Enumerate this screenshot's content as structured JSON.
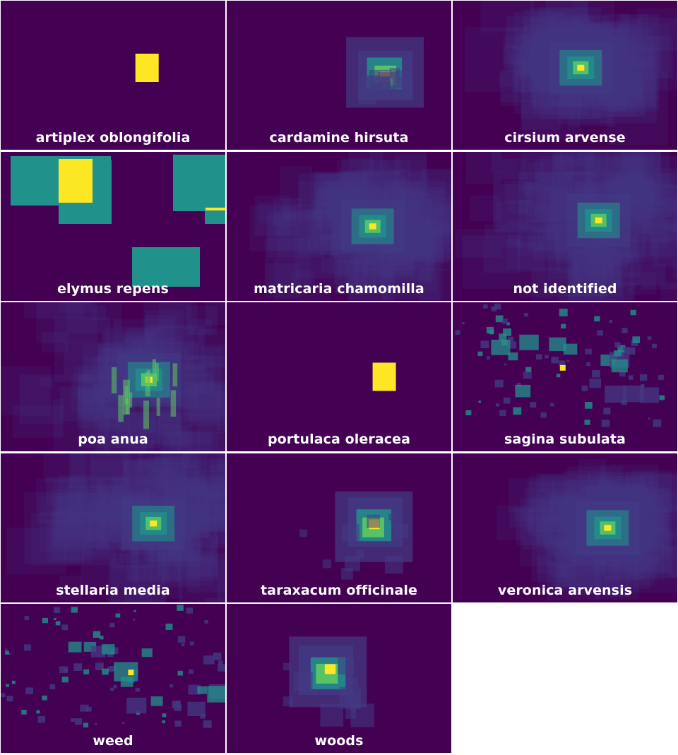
{
  "colors": {
    "background": "#440154",
    "low": "#443a83",
    "mid": "#21918c",
    "high": "#5ec962",
    "peak": "#fde725",
    "separator": "#ffffff",
    "label": "#ffffff"
  },
  "chart_data": {
    "type": "heatmap",
    "colormap": "viridis",
    "layout": {
      "rows": 5,
      "columns": 3
    },
    "axes_shown": false,
    "panels": [
      {
        "label": "artiplex oblongifolia",
        "style": "single",
        "hotspot": [
          0.65,
          0.45
        ],
        "spread": 0
      },
      {
        "label": "cardamine hirsuta",
        "style": "nested",
        "hotspot": [
          0.7,
          0.49
        ],
        "spread": 0.15
      },
      {
        "label": "cirsium arvense",
        "style": "diffuse",
        "hotspot": [
          0.57,
          0.45
        ],
        "spread": 0.3
      },
      {
        "label": "elymus repens",
        "style": "boxes",
        "hotspot": [
          0.33,
          0.18
        ],
        "spread": 0.45
      },
      {
        "label": "matricaria chamomilla",
        "style": "diffuse",
        "hotspot": [
          0.65,
          0.5
        ],
        "spread": 0.38
      },
      {
        "label": "not identified",
        "style": "diffuse",
        "hotspot": [
          0.65,
          0.46
        ],
        "spread": 0.45
      },
      {
        "label": "poa anua",
        "style": "blocky",
        "hotspot": [
          0.66,
          0.52
        ],
        "spread": 0.45
      },
      {
        "label": "portulaca oleracea",
        "style": "single",
        "hotspot": [
          0.7,
          0.5
        ],
        "spread": 0
      },
      {
        "label": "sagina subulata",
        "style": "scatter",
        "hotspot": [
          0.49,
          0.44
        ],
        "spread": 0.5
      },
      {
        "label": "stellaria media",
        "style": "diffuse",
        "hotspot": [
          0.68,
          0.47
        ],
        "spread": 0.45
      },
      {
        "label": "taraxacum officinale",
        "style": "nested",
        "hotspot": [
          0.66,
          0.48
        ],
        "spread": 0.35
      },
      {
        "label": "veronica arvensis",
        "style": "diffuse",
        "hotspot": [
          0.69,
          0.5
        ],
        "spread": 0.32
      },
      {
        "label": "weed",
        "style": "scatter",
        "hotspot": [
          0.58,
          0.46
        ],
        "spread": 0.5
      },
      {
        "label": "woods",
        "style": "nested",
        "hotspot": [
          0.45,
          0.45
        ],
        "spread": 0.3
      }
    ]
  }
}
